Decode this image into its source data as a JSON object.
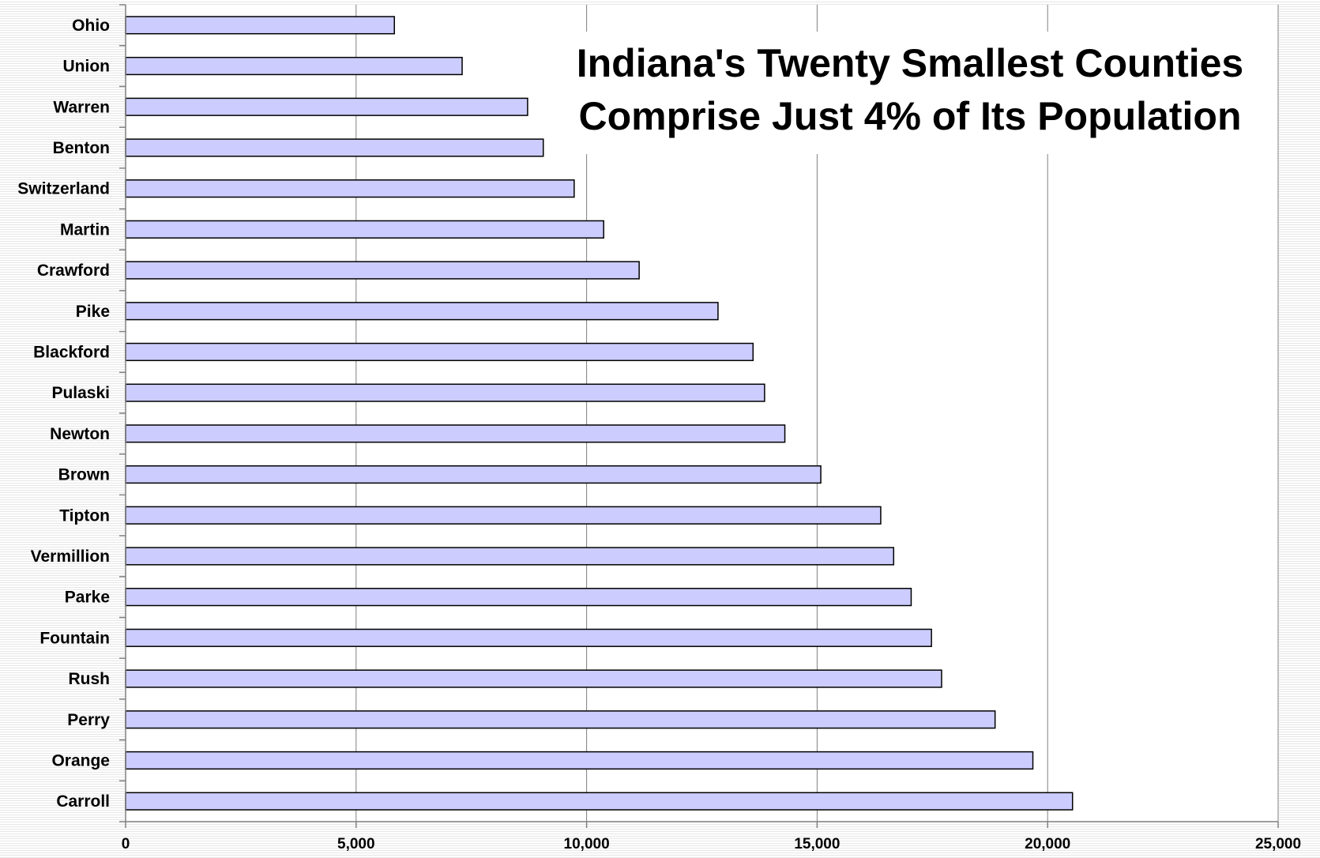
{
  "chart_data": {
    "type": "bar",
    "orientation": "horizontal",
    "title": [
      "Indiana's Twenty Smallest Counties",
      "Comprise Just 4% of Its Population"
    ],
    "categories": [
      "Ohio",
      "Union",
      "Warren",
      "Benton",
      "Switzerland",
      "Martin",
      "Crawford",
      "Pike",
      "Blackford",
      "Pulaski",
      "Newton",
      "Brown",
      "Tipton",
      "Vermillion",
      "Parke",
      "Fountain",
      "Rush",
      "Perry",
      "Orange",
      "Carroll"
    ],
    "values": [
      5830,
      7300,
      8720,
      9060,
      9730,
      10370,
      11140,
      12850,
      13610,
      13860,
      14300,
      15080,
      16380,
      16660,
      17040,
      17480,
      17700,
      18860,
      19680,
      20540
    ],
    "x_ticks": [
      "0",
      "5,000",
      "10,000",
      "15,000",
      "20,000",
      "25,000"
    ],
    "xlim": [
      0,
      25000
    ],
    "grid": true,
    "bar_color": "#ccccff",
    "bar_edge_color": "#000000"
  }
}
